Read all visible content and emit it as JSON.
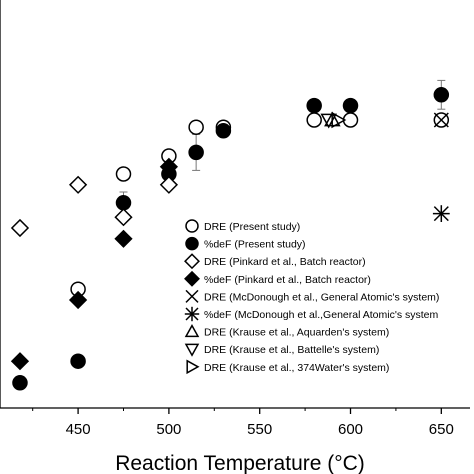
{
  "chart_data": {
    "type": "scatter",
    "title": "",
    "xlabel": "Reaction Temperature (°C)",
    "ylabel": "",
    "xlim": [
      407,
      668
    ],
    "ylim": [
      0,
      100
    ],
    "xticks": [
      450,
      500,
      550,
      600,
      650
    ],
    "grid": false,
    "legend_position": "center-right",
    "series": [
      {
        "name": "DRE (Present study)",
        "marker": "circle-open",
        "points": [
          [
            450,
            28
          ],
          [
            475,
            60
          ],
          [
            500,
            65
          ],
          [
            515,
            73
          ],
          [
            530,
            73
          ],
          [
            580,
            75
          ],
          [
            600,
            75
          ],
          [
            650,
            75
          ]
        ]
      },
      {
        "name": "%deF (Present study)",
        "marker": "circle-filled",
        "points": [
          [
            418,
            2
          ],
          [
            450,
            8
          ],
          [
            475,
            52
          ],
          [
            500,
            60
          ],
          [
            515,
            66
          ],
          [
            530,
            72
          ],
          [
            580,
            79
          ],
          [
            600,
            79
          ],
          [
            650,
            82
          ]
        ]
      },
      {
        "name": "DRE (Pinkard et al., Batch reactor)",
        "marker": "diamond-open",
        "points": [
          [
            418,
            45
          ],
          [
            450,
            57
          ],
          [
            475,
            48
          ],
          [
            500,
            57
          ]
        ]
      },
      {
        "name": "%deF (Pinkard et al., Batch reactor)",
        "marker": "diamond-filled",
        "points": [
          [
            418,
            8
          ],
          [
            450,
            25
          ],
          [
            475,
            42
          ],
          [
            500,
            62
          ]
        ]
      },
      {
        "name": "DRE (McDonough et al., General Atomic's system)",
        "marker": "x",
        "points": [
          [
            650,
            75
          ]
        ]
      },
      {
        "name": "%deF (McDonough et al.,General Atomic's system",
        "marker": "asterisk",
        "points": [
          [
            650,
            49
          ]
        ]
      },
      {
        "name": "DRE (Krause et al., Aquarden's system)",
        "marker": "triangle-up-open",
        "points": [
          [
            590,
            75
          ]
        ]
      },
      {
        "name": "DRE (Krause et al., Battelle's system)",
        "marker": "triangle-down-open",
        "points": [
          [
            588,
            75
          ]
        ]
      },
      {
        "name": "DRE (Krause et al., 374Water's system)",
        "marker": "triangle-right-open",
        "points": [
          [
            593,
            75
          ]
        ]
      }
    ],
    "error_bars": [
      {
        "x": 475,
        "y": 52,
        "err": 3
      },
      {
        "x": 515,
        "y": 66,
        "err": 5
      },
      {
        "x": 650,
        "y": 82,
        "err": 4
      }
    ]
  }
}
